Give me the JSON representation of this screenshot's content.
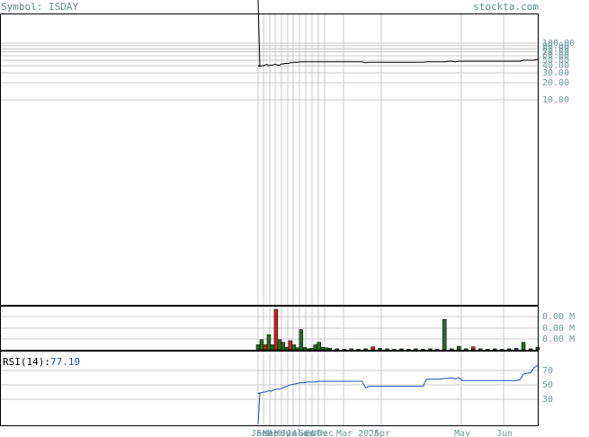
{
  "header": {
    "symbol_label": "Symbol: ISDAY",
    "site": "stockta.com"
  },
  "rsi": {
    "label": "RSI(14):",
    "value": "77.19",
    "ticks": [
      "70",
      "50",
      "30"
    ]
  },
  "colors": {
    "price": "#000000",
    "rsi": "#1f4fbf",
    "vol_up": "#1f6f1f",
    "vol_down": "#cc1f1f",
    "grid": "#c8c8c8",
    "text": "#6a9a9a"
  },
  "x_labels": [
    "Jan",
    "Feb",
    "Mar",
    "Apr",
    "May",
    "Jun",
    "Jul",
    "Aug",
    "Sep",
    "Oct",
    "Nov",
    "Dec",
    "Mar 2025",
    "Apr",
    "May",
    "Jun"
  ],
  "chart_data": [
    {
      "type": "line",
      "name": "price",
      "y_scale": "log",
      "y_ticks": [
        "100.00",
        "90.00",
        "80.00",
        "70.00",
        "60.00",
        "50.00",
        "40.00",
        "30.00",
        "20.00",
        "10.00"
      ],
      "x": [
        0,
        2,
        4,
        6,
        8,
        10,
        12,
        14,
        16,
        18,
        20,
        22,
        24,
        26,
        28,
        30,
        32,
        34,
        36,
        38,
        40,
        44,
        48,
        52,
        56,
        60,
        64,
        68,
        72,
        76,
        80,
        84,
        88,
        92,
        96,
        100,
        104,
        108,
        112,
        116,
        120,
        124,
        128,
        132,
        136,
        140,
        144,
        148,
        152,
        156,
        160,
        164,
        168,
        172,
        176,
        180,
        184,
        188,
        192,
        196,
        200,
        204,
        208,
        212,
        216,
        220,
        224,
        228,
        232,
        236,
        240,
        244,
        248,
        252,
        256,
        260,
        264,
        268,
        272,
        276,
        280,
        284,
        288,
        292,
        296,
        300,
        304,
        308,
        312
      ],
      "values": [
        40,
        39,
        40,
        40,
        41,
        42,
        40,
        41,
        41,
        42,
        42,
        41,
        41,
        43,
        43,
        44,
        44,
        44,
        45,
        45,
        46,
        46,
        47,
        47,
        47,
        47,
        47,
        47,
        47,
        47,
        47,
        47,
        47,
        47,
        47,
        47,
        47,
        47,
        47,
        47,
        45,
        46,
        46,
        46,
        46,
        46,
        46,
        46,
        46,
        46,
        46,
        46,
        46,
        46,
        46,
        46,
        46,
        47,
        47,
        47,
        47,
        47,
        47,
        48,
        48,
        47,
        48,
        48,
        48,
        48,
        48,
        48,
        48,
        48,
        48,
        48,
        48,
        48,
        48,
        48,
        48,
        48,
        48,
        48,
        50,
        50,
        50,
        50,
        52
      ]
    },
    {
      "type": "bar",
      "name": "volume",
      "y_ticks": [
        "0.00 M",
        "0.00 M",
        "0.00 M"
      ],
      "x": [
        0,
        4,
        8,
        12,
        16,
        20,
        24,
        28,
        32,
        36,
        40,
        44,
        48,
        52,
        56,
        60,
        64,
        68,
        72,
        76,
        80,
        88,
        96,
        104,
        112,
        120,
        128,
        136,
        144,
        152,
        160,
        168,
        176,
        184,
        192,
        200,
        208,
        216,
        224,
        232,
        240,
        248,
        256,
        264,
        272,
        280,
        288,
        296,
        304,
        312
      ],
      "values": [
        0.1,
        0.2,
        0.1,
        0.3,
        0.1,
        0.8,
        0.2,
        0.15,
        0.05,
        0.18,
        0.1,
        0.04,
        0.4,
        0.05,
        0.02,
        0.03,
        0.1,
        0.15,
        0.05,
        0.04,
        0.03,
        0.02,
        0.01,
        0.02,
        0.01,
        0.02,
        0.06,
        0.03,
        0.02,
        0.01,
        0.02,
        0.01,
        0.02,
        0.01,
        0.02,
        0.01,
        0.6,
        0.02,
        0.07,
        0.02,
        0.06,
        0.02,
        0.01,
        0.02,
        0.01,
        0.02,
        0.03,
        0.15,
        0.02,
        0.05
      ],
      "direction": [
        "up",
        "up",
        "down",
        "up",
        "up",
        "down",
        "up",
        "up",
        "up",
        "down",
        "up",
        "up",
        "up",
        "up",
        "up",
        "up",
        "up",
        "up",
        "up",
        "up",
        "up",
        "up",
        "up",
        "up",
        "up",
        "up",
        "down",
        "up",
        "up",
        "up",
        "up",
        "up",
        "up",
        "up",
        "up",
        "up",
        "up",
        "up",
        "up",
        "up",
        "down",
        "up",
        "up",
        "up",
        "up",
        "up",
        "up",
        "up",
        "up",
        "up"
      ]
    },
    {
      "type": "line",
      "name": "RSI(14)",
      "y_range": [
        0,
        100
      ],
      "x": [
        0,
        2,
        4,
        6,
        8,
        10,
        12,
        14,
        16,
        18,
        20,
        22,
        24,
        28,
        32,
        36,
        40,
        44,
        48,
        52,
        56,
        60,
        64,
        68,
        72,
        76,
        80,
        84,
        88,
        92,
        96,
        100,
        104,
        108,
        112,
        116,
        120,
        124,
        128,
        132,
        136,
        140,
        144,
        148,
        152,
        156,
        160,
        164,
        168,
        172,
        176,
        180,
        184,
        188,
        192,
        196,
        200,
        204,
        208,
        212,
        216,
        220,
        224,
        228,
        232,
        236,
        240,
        244,
        248,
        252,
        256,
        260,
        264,
        268,
        272,
        276,
        280,
        284,
        288,
        292,
        296,
        300,
        304,
        308,
        312
      ],
      "values": [
        38,
        39,
        39,
        40,
        40,
        41,
        42,
        41,
        42,
        43,
        44,
        44,
        44,
        46,
        48,
        50,
        51,
        52,
        53,
        53,
        54,
        54,
        54,
        55,
        55,
        55,
        55,
        55,
        55,
        55,
        55,
        55,
        55,
        55,
        55,
        55,
        46,
        48,
        48,
        48,
        48,
        48,
        48,
        48,
        48,
        48,
        48,
        48,
        48,
        48,
        48,
        48,
        48,
        58,
        58,
        58,
        58,
        58,
        59,
        59,
        60,
        58,
        60,
        56,
        56,
        56,
        56,
        56,
        56,
        56,
        56,
        56,
        56,
        56,
        56,
        56,
        56,
        56,
        56,
        57,
        65,
        66,
        67,
        74,
        77
      ]
    }
  ]
}
